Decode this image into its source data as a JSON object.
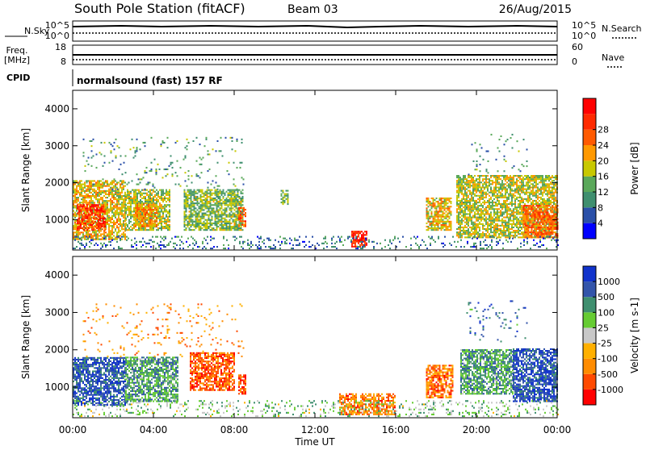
{
  "header": {
    "title": "South Pole Station (fitACF)",
    "beam": "Beam 03",
    "date": "26/Aug/2015"
  },
  "top_panels": {
    "nsky_label": "N.Sky",
    "nsearch_label": "N.Search",
    "nsky_ticks": [
      "10^5",
      "10^0"
    ],
    "nsearch_ticks": [
      "10^5",
      "10^0"
    ],
    "freq_label": "Freq.",
    "freq_unit": "[MHz]",
    "freq_ticks": [
      "18",
      "8"
    ],
    "nave_label": "Nave",
    "nave_ticks": [
      "60",
      "0"
    ],
    "cpid_label": "CPID",
    "cpid_text": "normalsound (fast) 157 RF"
  },
  "colors": {
    "power": [
      "#0000ff",
      "#2a4fa8",
      "#3f8f6f",
      "#5aa85a",
      "#c8c800",
      "#ff9900",
      "#ff5a00",
      "#ff2a00",
      "#ff0000"
    ],
    "velocity": [
      "#ff0000",
      "#ff4a00",
      "#ff8c00",
      "#ffb000",
      "#c8c8c8",
      "#66cc33",
      "#3f8f6f",
      "#3355aa",
      "#1133cc"
    ],
    "ground": "#888888"
  },
  "chart_data": [
    {
      "type": "heatmap",
      "ylabel": "Slant Range [km]",
      "xlabel": "",
      "x_range_hours": [
        0,
        24
      ],
      "x_ticks": [
        "00:00",
        "04:00",
        "08:00",
        "12:00",
        "16:00",
        "20:00",
        "00:00"
      ],
      "ylim": [
        180,
        4500
      ],
      "y_ticks": [
        1000,
        2000,
        3000,
        4000
      ],
      "colorbar_label": "Power [dB]",
      "colorbar_ticks": [
        "4",
        "8",
        "12",
        "16",
        "20",
        "24",
        "28"
      ],
      "clusters": [
        {
          "t0": 0.0,
          "t1": 2.6,
          "r0": 450,
          "r1": 2050,
          "v": 0.55
        },
        {
          "t0": 0.2,
          "t1": 1.6,
          "r0": 700,
          "r1": 1400,
          "v": 0.82
        },
        {
          "t0": 2.6,
          "t1": 4.8,
          "r0": 700,
          "r1": 1800,
          "v": 0.45
        },
        {
          "t0": 3.0,
          "t1": 4.2,
          "r0": 800,
          "r1": 1400,
          "v": 0.66
        },
        {
          "t0": 5.5,
          "t1": 8.4,
          "r0": 700,
          "r1": 1800,
          "v": 0.4
        },
        {
          "t0": 8.2,
          "t1": 8.6,
          "r0": 800,
          "r1": 1300,
          "v": 0.78
        },
        {
          "t0": 10.3,
          "t1": 10.7,
          "r0": 1400,
          "r1": 1800,
          "v": 0.38
        },
        {
          "t0": 17.5,
          "t1": 18.7,
          "r0": 700,
          "r1": 1600,
          "v": 0.55
        },
        {
          "t0": 19.0,
          "t1": 24.0,
          "r0": 500,
          "r1": 2200,
          "v": 0.48
        },
        {
          "t0": 22.3,
          "t1": 24.0,
          "r0": 500,
          "r1": 1400,
          "v": 0.75
        },
        {
          "t0": 13.8,
          "t1": 14.6,
          "r0": 250,
          "r1": 700,
          "v": 0.9
        }
      ],
      "speckle": [
        {
          "t0": 0.5,
          "t1": 8.5,
          "r0": 1800,
          "r1": 3200,
          "v": 0.3
        },
        {
          "t0": 19.5,
          "t1": 22.5,
          "r0": 2200,
          "r1": 3300,
          "v": 0.3
        }
      ],
      "ground_band": {
        "r0": 200,
        "r1": 550,
        "v": 0.2
      }
    },
    {
      "type": "heatmap",
      "ylabel": "Slant Range [km]",
      "xlabel": "Time UT",
      "x_range_hours": [
        0,
        24
      ],
      "x_ticks": [
        "00:00",
        "04:00",
        "08:00",
        "12:00",
        "16:00",
        "20:00",
        "00:00"
      ],
      "ylim": [
        180,
        4500
      ],
      "y_ticks": [
        1000,
        2000,
        3000,
        4000
      ],
      "colorbar_label": "Velocity [m s-1]",
      "colorbar_ticks": [
        "-1000",
        "-500",
        "-100",
        "-25",
        "25",
        "100",
        "500",
        "1000"
      ],
      "clusters": [
        {
          "t0": 0.0,
          "t1": 2.6,
          "r0": 500,
          "r1": 1800,
          "v": 0.9
        },
        {
          "t0": 2.6,
          "t1": 5.2,
          "r0": 600,
          "r1": 1800,
          "v": 0.72
        },
        {
          "t0": 5.8,
          "t1": 8.0,
          "r0": 900,
          "r1": 1900,
          "v": 0.15
        },
        {
          "t0": 8.2,
          "t1": 8.6,
          "r0": 800,
          "r1": 1300,
          "v": 0.1
        },
        {
          "t0": 13.2,
          "t1": 16.0,
          "r0": 250,
          "r1": 800,
          "v": 0.22
        },
        {
          "t0": 17.5,
          "t1": 18.8,
          "r0": 700,
          "r1": 1600,
          "v": 0.2
        },
        {
          "t0": 19.2,
          "t1": 21.8,
          "r0": 800,
          "r1": 2000,
          "v": 0.72
        },
        {
          "t0": 21.8,
          "t1": 24.0,
          "r0": 600,
          "r1": 2000,
          "v": 0.92
        }
      ],
      "speckle": [
        {
          "t0": 0.5,
          "t1": 8.5,
          "r0": 1800,
          "r1": 3200,
          "v": 0.25
        },
        {
          "t0": 19.5,
          "t1": 22.5,
          "r0": 2200,
          "r1": 3300,
          "v": 0.85
        }
      ],
      "ground_band": {
        "r0": 200,
        "r1": 650,
        "v": 0.6
      }
    }
  ]
}
